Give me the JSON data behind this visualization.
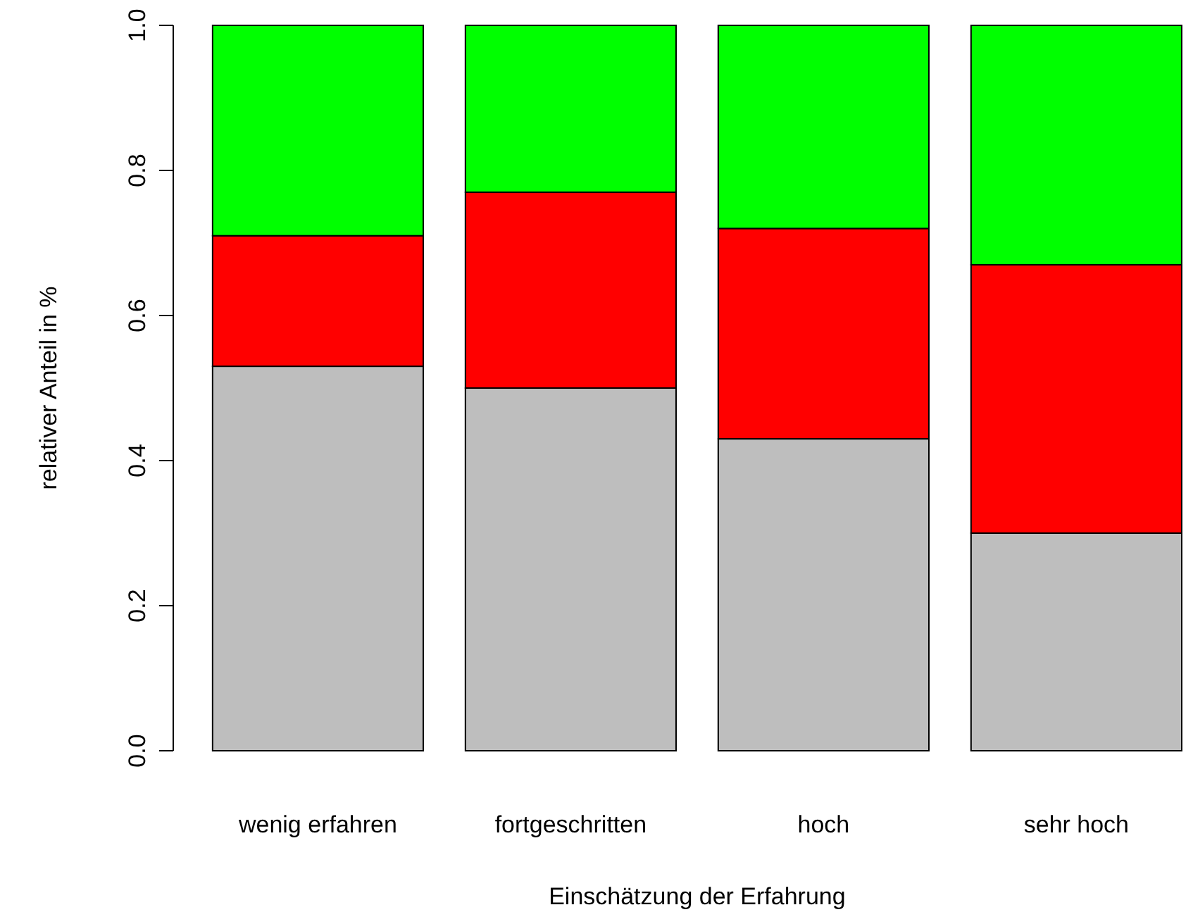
{
  "chart_data": {
    "type": "bar",
    "stacked": true,
    "xlabel": "Einschätzung der Erfahrung",
    "ylabel": "relativer Anteil in %",
    "categories": [
      "wenig erfahren",
      "fortgeschritten",
      "hoch",
      "sehr hoch"
    ],
    "series": [
      {
        "color": "#bebebe",
        "values": [
          0.53,
          0.5,
          0.43,
          0.3
        ]
      },
      {
        "color": "#ff0000",
        "values": [
          0.18,
          0.27,
          0.29,
          0.37
        ]
      },
      {
        "color": "#00ff00",
        "values": [
          0.29,
          0.23,
          0.28,
          0.33
        ]
      }
    ],
    "ylim": [
      0,
      1
    ],
    "yticks": [
      {
        "value": 0,
        "label": "0.0"
      },
      0.2,
      0.4,
      0.6,
      0.8,
      {
        "value": 1,
        "label": "1.0"
      }
    ]
  }
}
